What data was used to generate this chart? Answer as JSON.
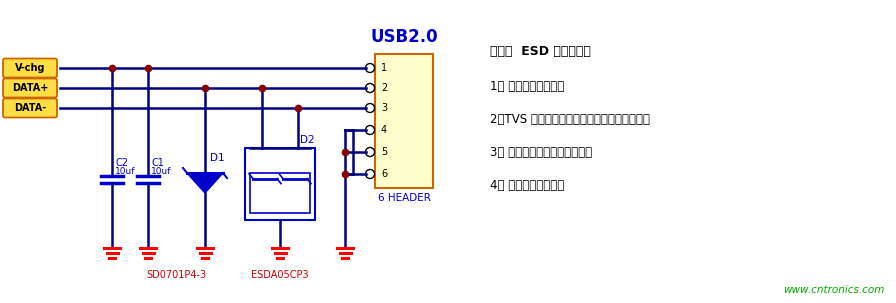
{
  "bg_color": "#ffffff",
  "title_usb": "USB2.0",
  "title_usb_color": "#0000cc",
  "header_label": "6 HEADER",
  "header_color": "#0000cc",
  "pin_labels": [
    "1",
    "2",
    "3",
    "4",
    "5",
    "6"
  ],
  "connector_fill": "#ffffcc",
  "connector_border": "#cc6600",
  "wire_color": "#000080",
  "gnd_color": "#ff0000",
  "node_color": "#880000",
  "diode_color": "#0000cc",
  "label_color": "#0000cc",
  "sd_label": "SD0701P4-3",
  "sd_color": "#cc0000",
  "esda_label": "ESDA05CP3",
  "esda_color": "#cc0000",
  "vchg_label": "V-chg",
  "datap_label": "DATA+",
  "datam_label": "DATA-",
  "pin_box_fill": "#ffdd44",
  "pin_box_border": "#cc6600",
  "notes_title": "备注：  ESD 选型原则：",
  "notes": [
    "1、 选择合适的封装；",
    "2、TVS 的击穿电压大于电路的最大工作电压；",
    "3、 选择符合测试要求的功率；",
    "4、 选择算位较小的。"
  ],
  "notes_color": "#000000",
  "watermark": "www.cntronics.com",
  "watermark_color": "#00aa00"
}
